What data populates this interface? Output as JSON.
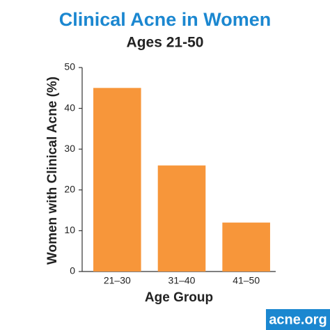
{
  "chart_data": {
    "type": "bar",
    "title": "Clinical Acne in Women",
    "subtitle": "Ages 21-50",
    "x_label": "Age Group",
    "y_label": "Women with Clinical Acne (%)",
    "categories": [
      "21–30",
      "31–40",
      "41–50"
    ],
    "values": [
      45,
      26,
      12
    ],
    "color": "#f7963a",
    "ylim": [
      0,
      50
    ],
    "yticks": [
      0,
      10,
      20,
      30,
      40,
      50
    ],
    "grid": false,
    "watermark": "acne.org"
  }
}
